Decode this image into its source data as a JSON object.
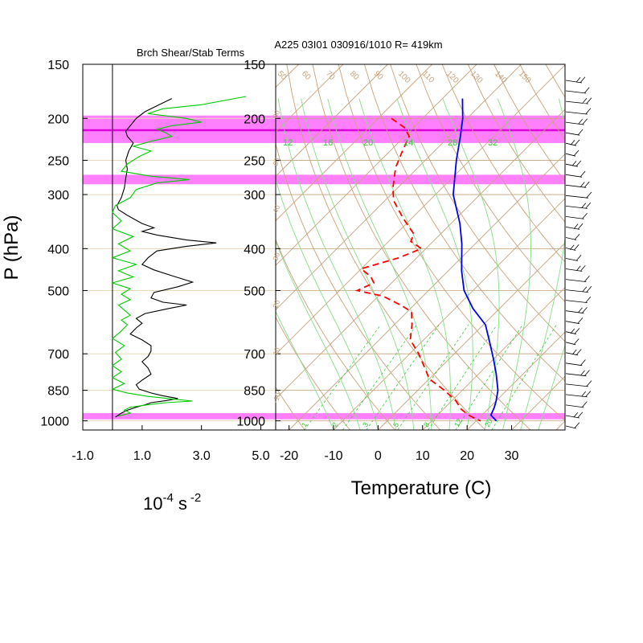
{
  "chart_data": [
    {
      "type": "line",
      "title": "Brch Shear/Stab Terms",
      "xlabel_base": "10",
      "xlabel_exp1": "-4",
      "xlabel_unit": "s",
      "xlabel_exp2": "-2",
      "ylabel": "P (hPa)",
      "xlim": [
        -1.0,
        5.5
      ],
      "ylim": [
        150,
        1050
      ],
      "y_scale": "log",
      "x_ticks": [
        "-1.0",
        "1.0",
        "3.0",
        "5.0"
      ],
      "x_tick_values": [
        -1.0,
        1.0,
        3.0,
        5.0
      ],
      "y_ticks": [
        "150",
        "200",
        "250",
        "300",
        "400",
        "500",
        "700",
        "850",
        "1000"
      ],
      "y_tick_values": [
        150,
        200,
        250,
        300,
        400,
        500,
        700,
        850,
        1000
      ],
      "highlight_bands": [
        [
          197,
          228
        ],
        [
          270,
          284
        ],
        [
          960,
          992
        ]
      ],
      "highlight_line": 213,
      "series": [
        {
          "color": "#000000",
          "points": [
            [
              2.0,
              180
            ],
            [
              1.5,
              187
            ],
            [
              1.1,
              193
            ],
            [
              0.8,
              200
            ],
            [
              0.6,
              208
            ],
            [
              0.45,
              214
            ],
            [
              0.5,
              220
            ],
            [
              0.7,
              228
            ],
            [
              0.55,
              238
            ],
            [
              0.45,
              250
            ],
            [
              0.5,
              262
            ],
            [
              0.45,
              275
            ],
            [
              0.4,
              290
            ],
            [
              0.3,
              305
            ],
            [
              0.15,
              318
            ],
            [
              0.2,
              325
            ],
            [
              0.5,
              335
            ],
            [
              1.0,
              350
            ],
            [
              1.4,
              358
            ],
            [
              1.0,
              365
            ],
            [
              1.5,
              372
            ],
            [
              2.5,
              382
            ],
            [
              3.5,
              388
            ],
            [
              2.5,
              395
            ],
            [
              1.5,
              405
            ],
            [
              1.2,
              420
            ],
            [
              1.0,
              435
            ],
            [
              1.4,
              448
            ],
            [
              2.0,
              462
            ],
            [
              2.7,
              478
            ],
            [
              2.2,
              490
            ],
            [
              1.4,
              505
            ],
            [
              1.3,
              520
            ],
            [
              1.7,
              532
            ],
            [
              2.5,
              540
            ],
            [
              1.9,
              550
            ],
            [
              1.1,
              565
            ],
            [
              0.8,
              580
            ],
            [
              1.0,
              595
            ],
            [
              0.8,
              610
            ],
            [
              0.6,
              630
            ],
            [
              1.0,
              650
            ],
            [
              1.3,
              670
            ],
            [
              1.3,
              690
            ],
            [
              1.2,
              710
            ],
            [
              1.0,
              730
            ],
            [
              1.2,
              755
            ],
            [
              1.3,
              780
            ],
            [
              1.0,
              805
            ],
            [
              0.8,
              825
            ],
            [
              0.9,
              845
            ],
            [
              1.3,
              862
            ],
            [
              1.7,
              875
            ],
            [
              2.2,
              888
            ],
            [
              1.8,
              898
            ],
            [
              1.3,
              908
            ],
            [
              1.1,
              918
            ],
            [
              0.8,
              930
            ],
            [
              0.5,
              945
            ],
            [
              0.3,
              960
            ],
            [
              0.1,
              980
            ]
          ]
        },
        {
          "color": "#00cc00",
          "points": [
            [
              4.5,
              178
            ],
            [
              3.0,
              186
            ],
            [
              1.7,
              190
            ],
            [
              1.2,
              195
            ],
            [
              2.5,
              200
            ],
            [
              3.0,
              204
            ],
            [
              2.0,
              208
            ],
            [
              1.5,
              212
            ],
            [
              1.8,
              216
            ],
            [
              2.0,
              220
            ],
            [
              1.3,
              226
            ],
            [
              0.7,
              232
            ],
            [
              1.3,
              238
            ],
            [
              0.9,
              245
            ],
            [
              0.5,
              255
            ],
            [
              0.3,
              265
            ],
            [
              1.3,
              272
            ],
            [
              2.6,
              277
            ],
            [
              1.5,
              282
            ],
            [
              0.8,
              292
            ],
            [
              0.6,
              305
            ],
            [
              0.1,
              318
            ],
            [
              0.0,
              330
            ],
            [
              0.3,
              345
            ],
            [
              0.0,
              360
            ],
            [
              0.7,
              375
            ],
            [
              0.2,
              390
            ],
            [
              0.6,
              405
            ],
            [
              0.0,
              420
            ],
            [
              0.8,
              435
            ],
            [
              0.2,
              450
            ],
            [
              0.7,
              465
            ],
            [
              0.0,
              480
            ],
            [
              0.6,
              495
            ],
            [
              0.3,
              510
            ],
            [
              0.6,
              525
            ],
            [
              0.2,
              540
            ],
            [
              0.4,
              555
            ],
            [
              0.6,
              570
            ],
            [
              0.3,
              585
            ],
            [
              0.5,
              600
            ],
            [
              0.3,
              620
            ],
            [
              0.0,
              645
            ],
            [
              0.4,
              670
            ],
            [
              0.1,
              695
            ],
            [
              0.3,
              720
            ],
            [
              0.0,
              745
            ],
            [
              0.3,
              770
            ],
            [
              0.0,
              795
            ],
            [
              0.4,
              820
            ],
            [
              0.0,
              845
            ],
            [
              0.5,
              862
            ],
            [
              1.2,
              878
            ],
            [
              2.0,
              890
            ],
            [
              2.7,
              900
            ],
            [
              1.8,
              908
            ],
            [
              1.2,
              918
            ],
            [
              0.6,
              930
            ],
            [
              0.4,
              945
            ],
            [
              0.6,
              960
            ],
            [
              0.2,
              975
            ]
          ]
        }
      ]
    },
    {
      "type": "line",
      "title": "A225 03I01 030916/1010 R= 419km",
      "xlabel": "Temperature (C)",
      "xlim": [
        -23,
        42
      ],
      "ylim": [
        150,
        1050
      ],
      "y_scale": "log",
      "skew": true,
      "x_ticks": [
        "-20",
        "-10",
        "0",
        "10",
        "20",
        "30"
      ],
      "x_tick_values": [
        -20,
        -10,
        0,
        10,
        20,
        30
      ],
      "y_ticks": [
        "150",
        "200",
        "250",
        "300",
        "400",
        "500",
        "700",
        "850",
        "1000"
      ],
      "y_tick_values": [
        150,
        200,
        250,
        300,
        400,
        500,
        700,
        850,
        1000
      ],
      "isotherm_labels": [
        "50",
        "60",
        "70",
        "80",
        "90",
        "100",
        "110",
        "120",
        "130",
        "140",
        "150"
      ],
      "mixing_ratio_labels": [
        "12",
        "16",
        "20",
        "24",
        "28",
        "32"
      ],
      "mixing_ratio_bottom_labels": [
        "1",
        "2",
        "3",
        "5",
        "8",
        "12",
        "20"
      ],
      "dry_adiabat_left_labels": [
        "80",
        "60",
        "40",
        "30",
        "20",
        "10",
        "-10"
      ],
      "highlight_bands": [
        [
          197,
          228
        ],
        [
          270,
          284
        ],
        [
          960,
          992
        ]
      ],
      "highlight_line": 213,
      "temperature": {
        "color": "#0000ee",
        "points": [
          [
            -55.5,
            180
          ],
          [
            -51,
            200
          ],
          [
            -47.5,
            220
          ],
          [
            -43,
            250
          ],
          [
            -36,
            300
          ],
          [
            -28,
            350
          ],
          [
            -23,
            390
          ],
          [
            -17,
            450
          ],
          [
            -12,
            500
          ],
          [
            -6,
            550
          ],
          [
            0.5,
            600
          ],
          [
            5.5,
            660
          ],
          [
            10,
            720
          ],
          [
            14,
            780
          ],
          [
            18,
            850
          ],
          [
            20,
            900
          ],
          [
            21,
            930
          ],
          [
            22,
            970
          ],
          [
            24.5,
            1000
          ]
        ]
      },
      "dewpoint": {
        "color": "#ff0000",
        "points": [
          [
            -67,
            200
          ],
          [
            -62,
            210
          ],
          [
            -59,
            220
          ],
          [
            -57,
            240
          ],
          [
            -55,
            260
          ],
          [
            -51,
            290
          ],
          [
            -48,
            310
          ],
          [
            -42,
            340
          ],
          [
            -36,
            370
          ],
          [
            -35,
            385
          ],
          [
            -31,
            400
          ],
          [
            -34,
            420
          ],
          [
            -40,
            445
          ],
          [
            -36,
            465
          ],
          [
            -34,
            480
          ],
          [
            -36,
            500
          ],
          [
            -29,
            515
          ],
          [
            -23,
            540
          ],
          [
            -19,
            560
          ],
          [
            -16,
            600
          ],
          [
            -13,
            650
          ],
          [
            -8,
            700
          ],
          [
            -3,
            760
          ],
          [
            0,
            800
          ],
          [
            6,
            850
          ],
          [
            11,
            900
          ],
          [
            14,
            940
          ],
          [
            17,
            970
          ],
          [
            19.5,
            990
          ],
          [
            21,
            1000
          ]
        ]
      },
      "wind_barb_count": 34
    }
  ]
}
